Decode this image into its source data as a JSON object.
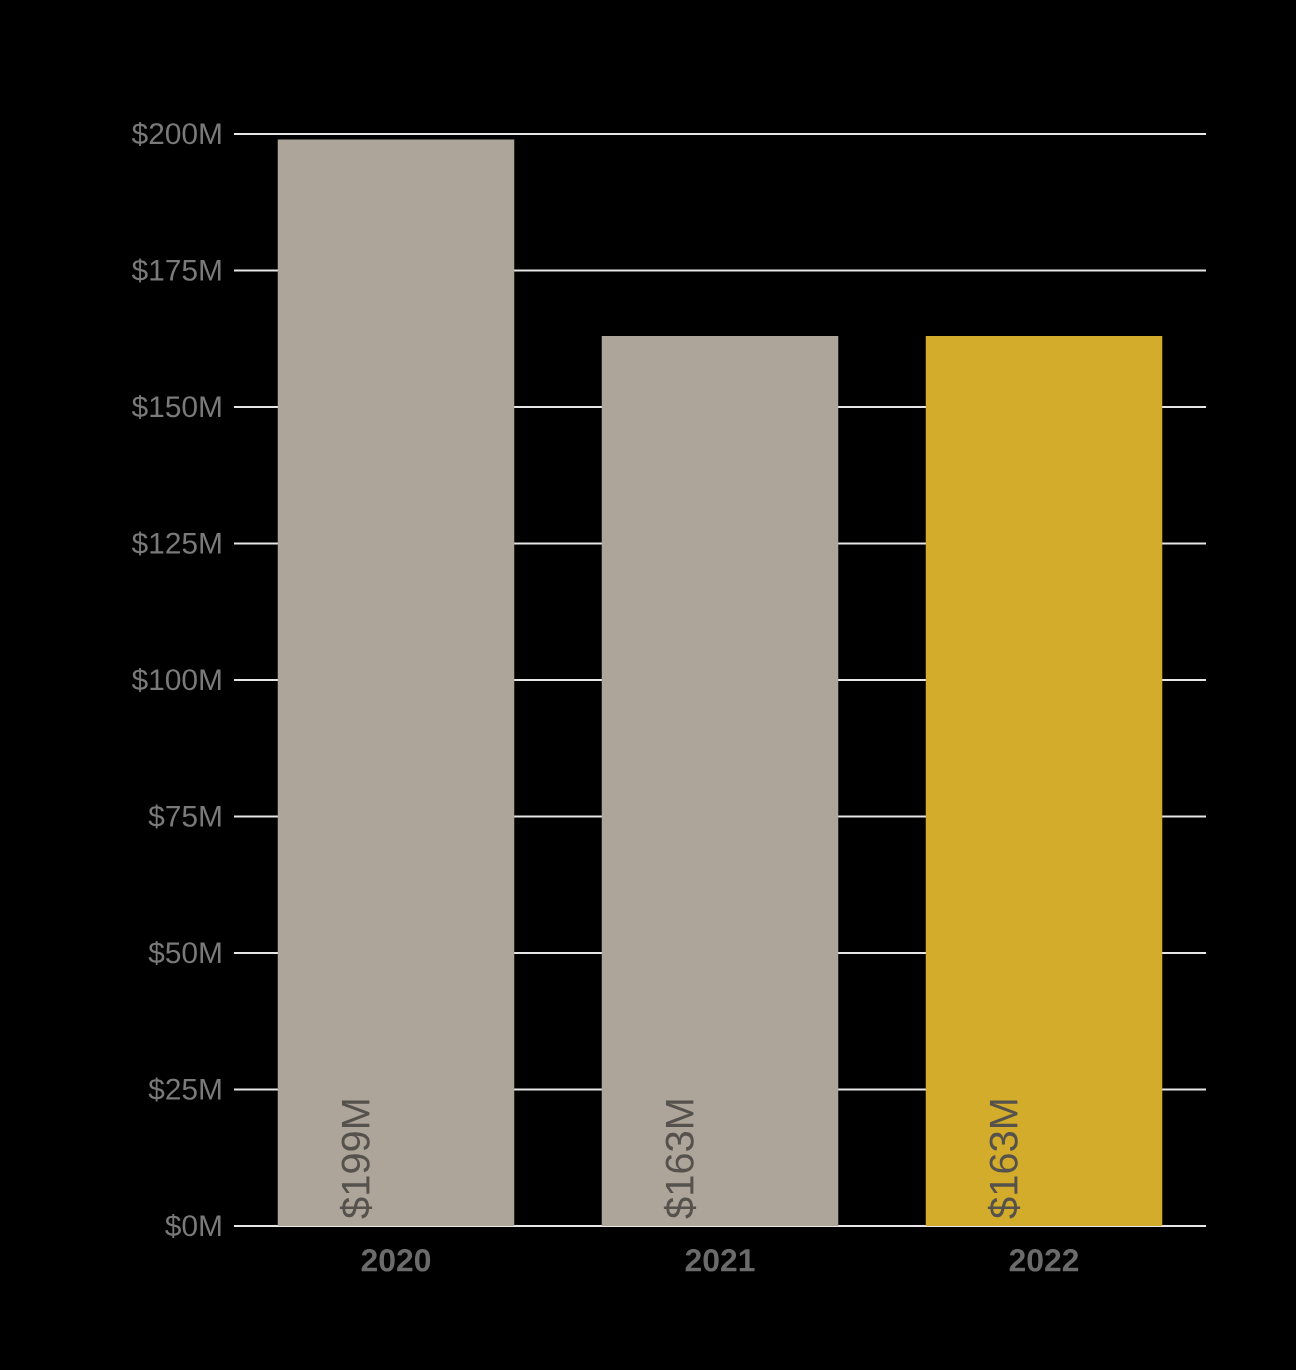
{
  "chart_data": {
    "type": "bar",
    "categories": [
      "2020",
      "2021",
      "2022"
    ],
    "values": [
      199,
      163,
      163
    ],
    "colors": [
      "#aea59a",
      "#aea59a",
      "#d4ac2b"
    ],
    "value_labels": [
      "$199M",
      "$163M",
      "$163M"
    ],
    "ylim": [
      0,
      200
    ],
    "yticks": [
      {
        "value": 0,
        "label": "$0M"
      },
      {
        "value": 25,
        "label": "$25M"
      },
      {
        "value": 50,
        "label": "$50M"
      },
      {
        "value": 75,
        "label": "$75M"
      },
      {
        "value": 100,
        "label": "$100M"
      },
      {
        "value": 125,
        "label": "$125M"
      },
      {
        "value": 150,
        "label": "$150M"
      },
      {
        "value": 175,
        "label": "$175M"
      },
      {
        "value": 200,
        "label": "$200M"
      }
    ],
    "grid": "y"
  }
}
